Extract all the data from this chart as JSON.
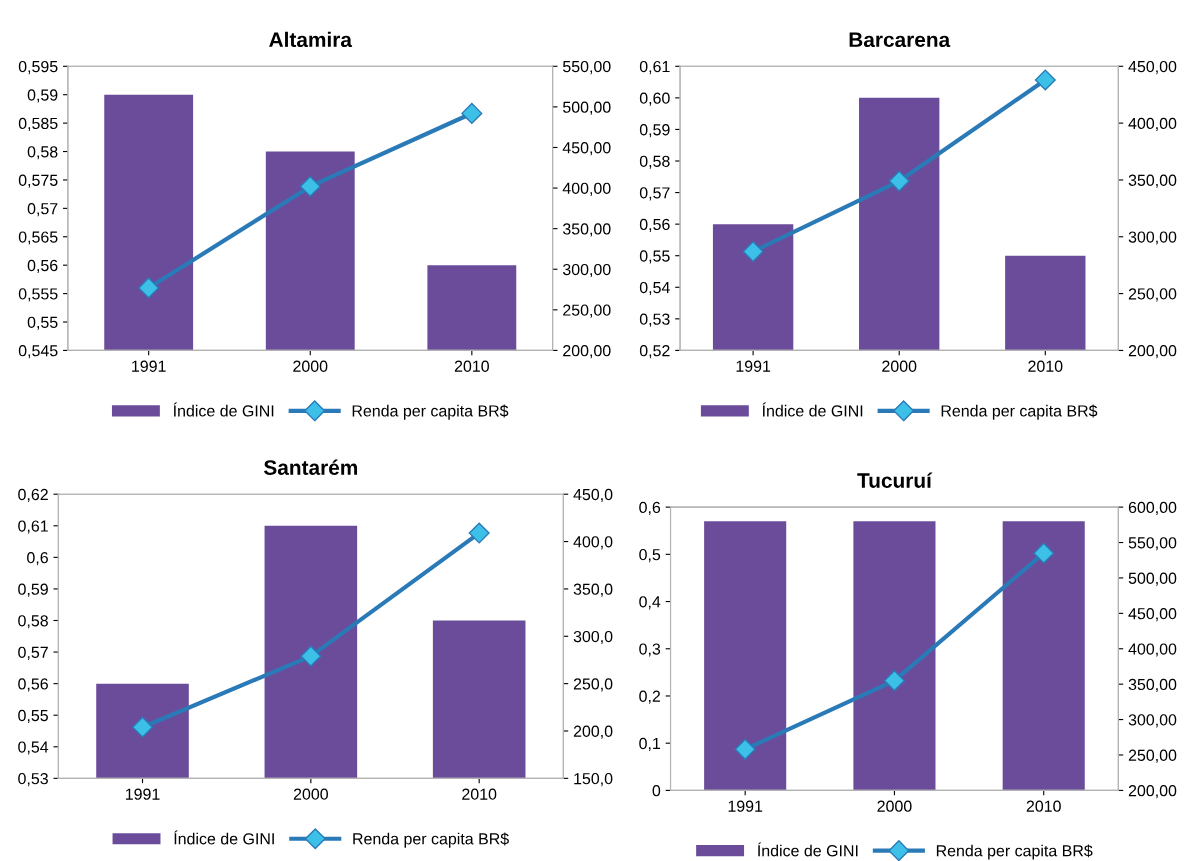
{
  "chart_data": [
    {
      "type": "bar",
      "title": "Altamira",
      "categories": [
        "1991",
        "2000",
        "2010"
      ],
      "legend": "bottom",
      "marker": "diamond",
      "series": [
        {
          "name": "Índice de GINI",
          "color": "#6b4c9a",
          "values": [
            0.59,
            0.58,
            0.56
          ]
        },
        {
          "name": "Renda per capita BR$",
          "type": "line",
          "axis": "y2",
          "color": "#2a7ab8",
          "values": [
            277,
            402,
            492
          ]
        }
      ],
      "ylim": [
        0.545,
        0.595
      ],
      "yticks": [
        {
          "value": 0.545,
          "label": "0,545"
        },
        {
          "value": 0.55,
          "label": "0,55"
        },
        {
          "value": 0.555,
          "label": "0,555"
        },
        {
          "value": 0.56,
          "label": "0,56"
        },
        {
          "value": 0.565,
          "label": "0,565"
        },
        {
          "value": 0.57,
          "label": "0,57"
        },
        {
          "value": 0.575,
          "label": "0,575"
        },
        {
          "value": 0.58,
          "label": "0,58"
        },
        {
          "value": 0.585,
          "label": "0,585"
        },
        {
          "value": 0.59,
          "label": "0,59"
        },
        {
          "value": 0.595,
          "label": "0,595"
        }
      ],
      "y2lim": [
        200,
        550
      ],
      "y2ticks": [
        {
          "value": 200,
          "label": "200,00"
        },
        {
          "value": 250,
          "label": "250,00"
        },
        {
          "value": 300,
          "label": "300,00"
        },
        {
          "value": 350,
          "label": "350,00"
        },
        {
          "value": 400,
          "label": "400,00"
        },
        {
          "value": 450,
          "label": "450,00"
        },
        {
          "value": 500,
          "label": "500,00"
        },
        {
          "value": 550,
          "label": "550,00"
        }
      ]
    },
    {
      "type": "bar",
      "title": "Barcarena",
      "categories": [
        "1991",
        "2000",
        "2010"
      ],
      "legend": "bottom",
      "marker": "diamond",
      "series": [
        {
          "name": "Índice de GINI",
          "color": "#6b4c9a",
          "values": [
            0.56,
            0.6,
            0.55
          ]
        },
        {
          "name": "Renda per capita BR$",
          "type": "line",
          "axis": "y2",
          "color": "#2a7ab8",
          "values": [
            287,
            349,
            438
          ]
        }
      ],
      "ylim": [
        0.52,
        0.61
      ],
      "yticks": [
        {
          "value": 0.52,
          "label": "0,52"
        },
        {
          "value": 0.53,
          "label": "0,53"
        },
        {
          "value": 0.54,
          "label": "0,54"
        },
        {
          "value": 0.55,
          "label": "0,55"
        },
        {
          "value": 0.56,
          "label": "0,56"
        },
        {
          "value": 0.57,
          "label": "0,57"
        },
        {
          "value": 0.58,
          "label": "0,58"
        },
        {
          "value": 0.59,
          "label": "0,59"
        },
        {
          "value": 0.6,
          "label": "0,60"
        },
        {
          "value": 0.61,
          "label": "0,61"
        }
      ],
      "y2lim": [
        200,
        450
      ],
      "y2ticks": [
        {
          "value": 200,
          "label": "200,00"
        },
        {
          "value": 250,
          "label": "250,00"
        },
        {
          "value": 300,
          "label": "300,00"
        },
        {
          "value": 350,
          "label": "350,00"
        },
        {
          "value": 400,
          "label": "400,00"
        },
        {
          "value": 450,
          "label": "450,00"
        }
      ]
    },
    {
      "type": "bar",
      "title": "Santarém",
      "categories": [
        "1991",
        "2000",
        "2010"
      ],
      "legend": "bottom",
      "marker": "diamond",
      "series": [
        {
          "name": "Índice de GINI",
          "color": "#6b4c9a",
          "values": [
            0.56,
            0.61,
            0.58
          ]
        },
        {
          "name": "Renda per capita BR$",
          "type": "line",
          "axis": "y2",
          "color": "#2a7ab8",
          "values": [
            204,
            279,
            409
          ]
        }
      ],
      "ylim": [
        0.53,
        0.62
      ],
      "yticks": [
        {
          "value": 0.53,
          "label": "0,53"
        },
        {
          "value": 0.54,
          "label": "0,54"
        },
        {
          "value": 0.55,
          "label": "0,55"
        },
        {
          "value": 0.56,
          "label": "0,56"
        },
        {
          "value": 0.57,
          "label": "0,57"
        },
        {
          "value": 0.58,
          "label": "0,58"
        },
        {
          "value": 0.59,
          "label": "0,59"
        },
        {
          "value": 0.6,
          "label": "0,6"
        },
        {
          "value": 0.61,
          "label": "0,61"
        },
        {
          "value": 0.62,
          "label": "0,62"
        }
      ],
      "y2lim": [
        150,
        450
      ],
      "y2ticks": [
        {
          "value": 150,
          "label": "150,0"
        },
        {
          "value": 200,
          "label": "200,0"
        },
        {
          "value": 250,
          "label": "250,0"
        },
        {
          "value": 300,
          "label": "300,0"
        },
        {
          "value": 350,
          "label": "350,0"
        },
        {
          "value": 400,
          "label": "400,0"
        },
        {
          "value": 450,
          "label": "450,0"
        }
      ]
    },
    {
      "type": "bar",
      "title": "Tucuruí",
      "categories": [
        "1991",
        "2000",
        "2010"
      ],
      "legend": "bottom",
      "marker": "diamond",
      "series": [
        {
          "name": "Índice de GINI",
          "color": "#6b4c9a",
          "values": [
            0.57,
            0.57,
            0.57
          ]
        },
        {
          "name": "Renda per capita BR$",
          "type": "line",
          "axis": "y2",
          "color": "#2a7ab8",
          "values": [
            258,
            355,
            535
          ]
        }
      ],
      "ylim": [
        0,
        0.6
      ],
      "yticks": [
        0,
        {
          "value": 0.1,
          "label": "0,1"
        },
        {
          "value": 0.2,
          "label": "0,2"
        },
        {
          "value": 0.3,
          "label": "0,3"
        },
        {
          "value": 0.4,
          "label": "0,4"
        },
        {
          "value": 0.5,
          "label": "0,5"
        },
        {
          "value": 0.6,
          "label": "0,6"
        }
      ],
      "y2lim": [
        200,
        600
      ],
      "y2ticks": [
        {
          "value": 200,
          "label": "200,00"
        },
        {
          "value": 250,
          "label": "250,00"
        },
        {
          "value": 300,
          "label": "300,00"
        },
        {
          "value": 350,
          "label": "350,00"
        },
        {
          "value": 400,
          "label": "400,00"
        },
        {
          "value": 450,
          "label": "450,00"
        },
        {
          "value": 500,
          "label": "500,00"
        },
        {
          "value": 550,
          "label": "550,00"
        },
        {
          "value": 600,
          "label": "600,00"
        }
      ]
    }
  ]
}
